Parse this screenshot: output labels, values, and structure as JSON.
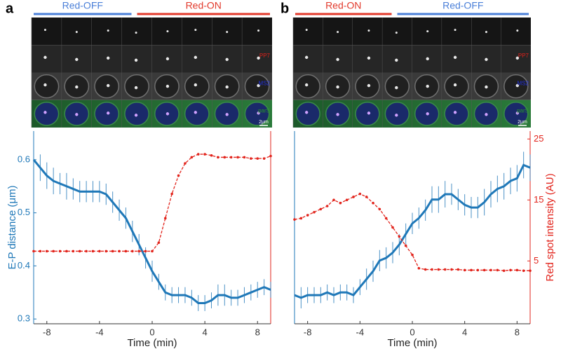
{
  "chart_data": [
    {
      "type": "line",
      "panel": "a",
      "phases": [
        {
          "label": "Red-OFF",
          "color": "#4a7fd8"
        },
        {
          "label": "Red-ON",
          "color": "#e2392b"
        }
      ],
      "channel_labels": [
        {
          "label": "PP7",
          "color": "#e0201a"
        },
        {
          "label": "MS2",
          "color": "#2030e0"
        },
        {
          "label": "parS",
          "color": "#2a9a2a"
        }
      ],
      "scale_bar": "2μm",
      "xlabel": "Time (min)",
      "ylabel": "E-P distance (μm)",
      "xlim": [
        -9,
        9
      ],
      "xticks": [
        -8,
        -4,
        0,
        4,
        8
      ],
      "ylim": [
        0.291,
        0.654
      ],
      "yticks": [
        0.3,
        0.4,
        0.5,
        0.6
      ],
      "y2lim": [
        -5.3,
        26.3
      ],
      "x": [
        -9,
        -8.5,
        -8,
        -7.5,
        -7,
        -6.5,
        -6,
        -5.5,
        -5,
        -4.5,
        -4,
        -3.5,
        -3,
        -2.5,
        -2,
        -1.5,
        -1,
        -0.5,
        0,
        0.5,
        1,
        1.5,
        2,
        2.5,
        3,
        3.5,
        4,
        4.5,
        5,
        5.5,
        6,
        6.5,
        7,
        7.5,
        8,
        8.5,
        9
      ],
      "series": [
        {
          "color": "#1f78b8",
          "values": [
            0.6,
            0.585,
            0.57,
            0.56,
            0.555,
            0.55,
            0.545,
            0.54,
            0.54,
            0.54,
            0.54,
            0.535,
            0.52,
            0.505,
            0.49,
            0.465,
            0.44,
            0.415,
            0.39,
            0.37,
            0.35,
            0.345,
            0.345,
            0.345,
            0.34,
            0.33,
            0.33,
            0.335,
            0.345,
            0.345,
            0.34,
            0.34,
            0.345,
            0.35,
            0.355,
            0.36,
            0.355
          ],
          "errors": [
            0.02,
            0.025,
            0.025,
            0.025,
            0.02,
            0.025,
            0.02,
            0.02,
            0.02,
            0.02,
            0.02,
            0.02,
            0.02,
            0.02,
            0.02,
            0.02,
            0.02,
            0.02,
            0.02,
            0.015,
            0.015,
            0.015,
            0.015,
            0.015,
            0.015,
            0.015,
            0.015,
            0.015,
            0.02,
            0.02,
            0.015,
            0.015,
            0.015,
            0.015,
            0.015,
            0.015,
            0.015
          ]
        },
        {
          "color": "#e2241c",
          "axis": "y2",
          "values": [
            6.6,
            6.6,
            6.6,
            6.6,
            6.6,
            6.6,
            6.6,
            6.6,
            6.6,
            6.6,
            6.6,
            6.6,
            6.6,
            6.6,
            6.6,
            6.6,
            6.6,
            6.6,
            6.6,
            8,
            12,
            16,
            19,
            21,
            22,
            22.5,
            22.5,
            22.3,
            22,
            22,
            22,
            22,
            22,
            21.8,
            21.8,
            21.8,
            22.2
          ]
        }
      ]
    },
    {
      "type": "line",
      "panel": "b",
      "phases": [
        {
          "label": "Red-ON",
          "color": "#e2392b"
        },
        {
          "label": "Red-OFF",
          "color": "#4a7fd8"
        }
      ],
      "channel_labels": [
        {
          "label": "PP7",
          "color": "#e0201a"
        },
        {
          "label": "MS2",
          "color": "#2030e0"
        },
        {
          "label": "parS",
          "color": "#2a9a2a"
        }
      ],
      "scale_bar": "2μm",
      "xlabel": "Time (min)",
      "y2label": "Red spot intensity (AU)",
      "xlim": [
        -9,
        9
      ],
      "xticks": [
        -8,
        -4,
        0,
        4,
        8
      ],
      "ylim": [
        0.291,
        0.654
      ],
      "y2lim": [
        -5.3,
        26.3
      ],
      "y2ticks": [
        5,
        15,
        25
      ],
      "x": [
        -9,
        -8.5,
        -8,
        -7.5,
        -7,
        -6.5,
        -6,
        -5.5,
        -5,
        -4.5,
        -4,
        -3.5,
        -3,
        -2.5,
        -2,
        -1.5,
        -1,
        -0.5,
        0,
        0.5,
        1,
        1.5,
        2,
        2.5,
        3,
        3.5,
        4,
        4.5,
        5,
        5.5,
        6,
        6.5,
        7,
        7.5,
        8,
        8.5,
        9
      ],
      "series": [
        {
          "color": "#1f78b8",
          "values": [
            0.345,
            0.34,
            0.345,
            0.345,
            0.345,
            0.35,
            0.345,
            0.35,
            0.35,
            0.345,
            0.36,
            0.375,
            0.39,
            0.41,
            0.415,
            0.425,
            0.44,
            0.46,
            0.48,
            0.49,
            0.505,
            0.525,
            0.525,
            0.535,
            0.535,
            0.525,
            0.515,
            0.51,
            0.51,
            0.52,
            0.535,
            0.545,
            0.55,
            0.56,
            0.565,
            0.59,
            0.585
          ],
          "errors": [
            0.02,
            0.02,
            0.015,
            0.015,
            0.015,
            0.015,
            0.015,
            0.015,
            0.015,
            0.015,
            0.015,
            0.02,
            0.02,
            0.02,
            0.02,
            0.02,
            0.02,
            0.02,
            0.02,
            0.02,
            0.02,
            0.025,
            0.025,
            0.025,
            0.02,
            0.02,
            0.02,
            0.02,
            0.02,
            0.025,
            0.025,
            0.025,
            0.025,
            0.025,
            0.025,
            0.025,
            0.025
          ]
        },
        {
          "color": "#e2241c",
          "axis": "y2",
          "values": [
            11.8,
            12,
            12.5,
            13,
            13.5,
            14,
            15,
            14.5,
            15,
            15.5,
            16,
            15.5,
            14.5,
            13.5,
            12,
            10.5,
            9,
            7.5,
            6,
            3.8,
            3.6,
            3.6,
            3.6,
            3.6,
            3.6,
            3.6,
            3.5,
            3.5,
            3.5,
            3.5,
            3.5,
            3.5,
            3.4,
            3.5,
            3.5,
            3.4,
            3.4
          ]
        }
      ]
    }
  ]
}
